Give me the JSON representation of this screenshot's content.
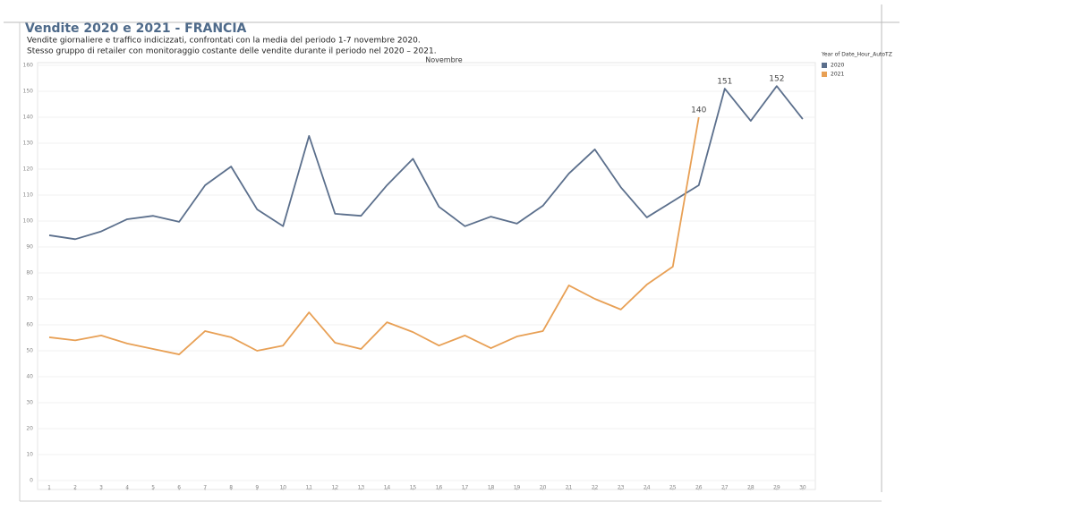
{
  "chart_data": {
    "type": "line",
    "title": "Vendite 2020 e 2021 - FRANCIA",
    "subtitle": [
      "Vendite giornaliere e traffico indicizzati, confrontati con la media del periodo 1-7 novembre 2020.",
      "Stesso gruppo di retailer con monitoraggio costante delle vendite durante il periodo nel 2020 – 2021."
    ],
    "x_label": "Novembre",
    "legend_title": "Year of Date_Hour_AutoTZ",
    "x": [
      1,
      2,
      3,
      4,
      5,
      6,
      7,
      8,
      9,
      10,
      11,
      12,
      13,
      14,
      15,
      16,
      17,
      18,
      19,
      20,
      21,
      22,
      23,
      24,
      25,
      26,
      27,
      28,
      29,
      30
    ],
    "xlim": [
      0.5,
      30.5
    ],
    "xticks": [
      1,
      2,
      3,
      4,
      5,
      6,
      7,
      8,
      9,
      10,
      11,
      12,
      13,
      14,
      15,
      16,
      17,
      18,
      19,
      20,
      21,
      22,
      23,
      24,
      25,
      26,
      27,
      28,
      29,
      30
    ],
    "ylim": [
      0,
      160
    ],
    "yticks": [
      0,
      10,
      20,
      30,
      40,
      50,
      60,
      70,
      80,
      90,
      100,
      110,
      120,
      130,
      140,
      150,
      160
    ],
    "grid": true,
    "series": [
      {
        "name": "2020",
        "color": "#5b6f8c",
        "values": [
          94.5,
          93,
          96,
          100.7,
          102,
          99.7,
          113.8,
          121,
          104.5,
          98,
          132.8,
          102.8,
          102,
          113.8,
          124,
          105.5,
          98,
          101.7,
          99,
          105.9,
          118.3,
          127.6,
          113,
          101.4,
          107.6,
          113.8,
          151,
          138.6,
          152,
          139.3
        ],
        "value_labels": [
          null,
          null,
          null,
          null,
          null,
          null,
          null,
          null,
          null,
          null,
          null,
          null,
          null,
          null,
          null,
          null,
          null,
          null,
          null,
          null,
          null,
          null,
          null,
          null,
          null,
          null,
          "151",
          null,
          "152",
          null
        ]
      },
      {
        "name": "2021",
        "color": "#e8a055",
        "values": [
          55.2,
          54,
          55.9,
          52.8,
          50.7,
          48.6,
          57.6,
          55.2,
          50,
          52,
          64.8,
          53.1,
          50.7,
          61,
          57.2,
          52,
          55.9,
          51,
          55.5,
          57.6,
          75.2,
          70,
          65.9,
          75.5,
          82.4,
          140,
          null,
          null,
          null,
          null
        ],
        "value_labels": [
          null,
          null,
          null,
          null,
          null,
          null,
          null,
          null,
          null,
          null,
          null,
          null,
          null,
          null,
          null,
          null,
          null,
          null,
          null,
          null,
          null,
          null,
          null,
          null,
          null,
          "140",
          null,
          null,
          null,
          null
        ]
      }
    ]
  }
}
